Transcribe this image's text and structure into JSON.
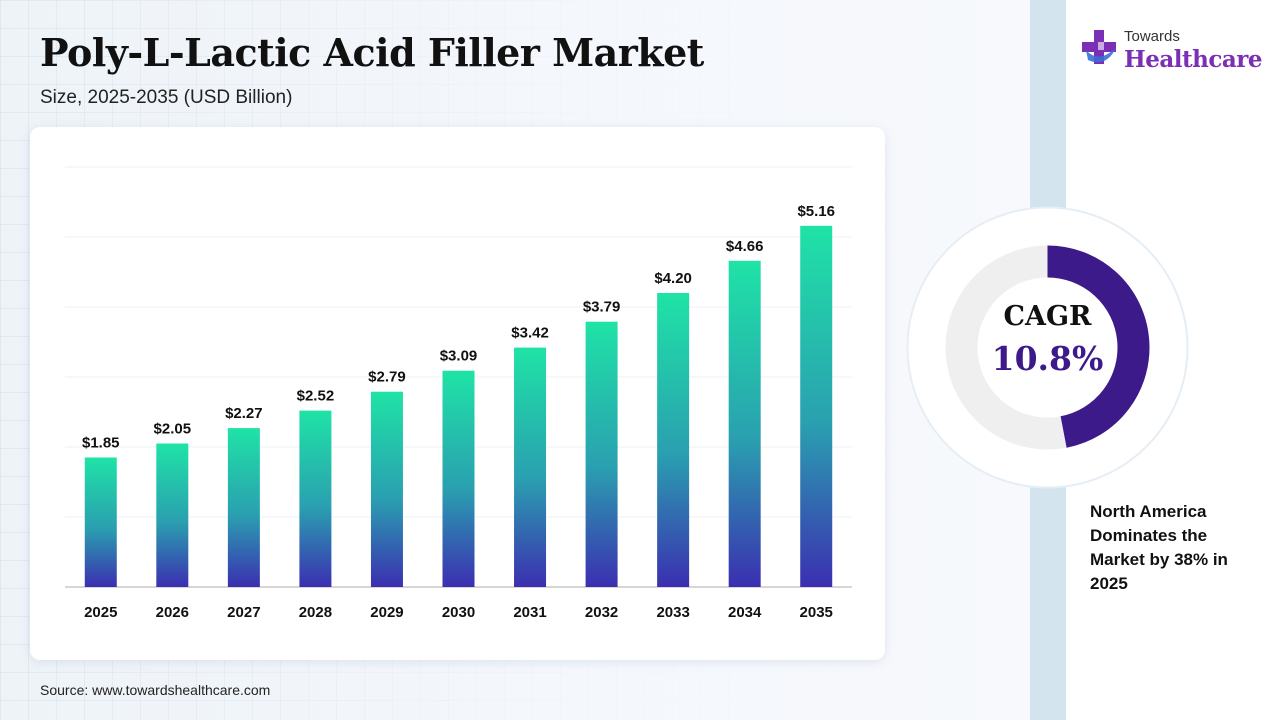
{
  "header": {
    "title": "Poly-L-Lactic Acid Filler Market",
    "subtitle": "Size, 2025-2035 (USD Billion)"
  },
  "brand": {
    "line1": "Towards",
    "line2": "Healthcare",
    "logo_icon": "medical-cross-icon",
    "colors": {
      "purple": "#7b2fb5",
      "blue": "#3a6fd8"
    }
  },
  "chart_data": {
    "type": "bar",
    "categories": [
      "2025",
      "2026",
      "2027",
      "2028",
      "2029",
      "2030",
      "2031",
      "2032",
      "2033",
      "2034",
      "2035"
    ],
    "values": [
      1.85,
      2.05,
      2.27,
      2.52,
      2.79,
      3.09,
      3.42,
      3.79,
      4.2,
      4.66,
      5.16
    ],
    "data_labels": [
      "$1.85",
      "$2.05",
      "$2.27",
      "$2.52",
      "$2.79",
      "$3.09",
      "$3.42",
      "$3.79",
      "$4.20",
      "$4.66",
      "$5.16"
    ],
    "ylim": [
      0,
      6
    ],
    "grid": true,
    "bar_gradient": {
      "top": "#1fe3a6",
      "mid": "#2a9fb0",
      "bottom": "#3b2fb0"
    }
  },
  "cagr": {
    "label": "CAGR",
    "value": "10.8%",
    "ring_fraction": 0.47,
    "colors": {
      "fill": "#3d1a8a",
      "track": "#efefef"
    }
  },
  "note": "North America Dominates the Market by 38% in 2025",
  "source": "Source: www.towardshealthcare.com"
}
